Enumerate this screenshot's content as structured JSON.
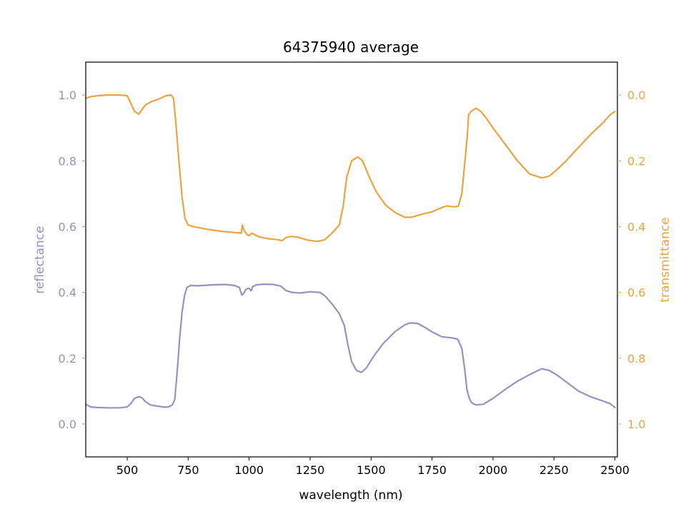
{
  "chart_data": {
    "type": "line",
    "title": "64375940 average",
    "xlabel": "wavelength (nm)",
    "ylabel_left": "reflectance",
    "ylabel_right": "transmittance",
    "xlim": [
      330,
      2510
    ],
    "ylim_left": [
      -0.1,
      1.1
    ],
    "ylim_right": [
      1.1,
      -0.1
    ],
    "right_axis_inverted": true,
    "grid": false,
    "x_ticks": [
      {
        "value": 500,
        "label": "500"
      },
      {
        "value": 750,
        "label": "750"
      },
      {
        "value": 1000,
        "label": "1000"
      },
      {
        "value": 1250,
        "label": "1250"
      },
      {
        "value": 1500,
        "label": "1500"
      },
      {
        "value": 1750,
        "label": "1750"
      },
      {
        "value": 2000,
        "label": "2000"
      },
      {
        "value": 2250,
        "label": "2250"
      },
      {
        "value": 2500,
        "label": "2500"
      }
    ],
    "y_ticks_left": [
      {
        "value": 0.0,
        "label": "0.0"
      },
      {
        "value": 0.2,
        "label": "0.2"
      },
      {
        "value": 0.4,
        "label": "0.4"
      },
      {
        "value": 0.6,
        "label": "0.6"
      },
      {
        "value": 0.8,
        "label": "0.8"
      },
      {
        "value": 1.0,
        "label": "1.0"
      }
    ],
    "y_ticks_right": [
      {
        "value": 0.0,
        "label": "0.0"
      },
      {
        "value": 0.2,
        "label": "0.2"
      },
      {
        "value": 0.4,
        "label": "0.4"
      },
      {
        "value": 0.6,
        "label": "0.6"
      },
      {
        "value": 0.8,
        "label": "0.8"
      },
      {
        "value": 1.0,
        "label": "1.0"
      }
    ],
    "colors": {
      "reflectance": "#9791c3",
      "transmittance": "#eca340",
      "axes": "#000000"
    },
    "series": [
      {
        "axis": "left",
        "color": "#9791c3",
        "points": [
          [
            330,
            0.06
          ],
          [
            350,
            0.052
          ],
          [
            380,
            0.05
          ],
          [
            420,
            0.049
          ],
          [
            470,
            0.049
          ],
          [
            500,
            0.052
          ],
          [
            515,
            0.062
          ],
          [
            530,
            0.078
          ],
          [
            548,
            0.083
          ],
          [
            560,
            0.08
          ],
          [
            575,
            0.068
          ],
          [
            595,
            0.058
          ],
          [
            625,
            0.054
          ],
          [
            655,
            0.051
          ],
          [
            670,
            0.052
          ],
          [
            685,
            0.058
          ],
          [
            695,
            0.075
          ],
          [
            705,
            0.16
          ],
          [
            715,
            0.26
          ],
          [
            725,
            0.34
          ],
          [
            735,
            0.39
          ],
          [
            745,
            0.415
          ],
          [
            760,
            0.421
          ],
          [
            790,
            0.42
          ],
          [
            850,
            0.423
          ],
          [
            900,
            0.424
          ],
          [
            940,
            0.421
          ],
          [
            960,
            0.415
          ],
          [
            970,
            0.392
          ],
          [
            978,
            0.398
          ],
          [
            986,
            0.408
          ],
          [
            993,
            0.412
          ],
          [
            1000,
            0.412
          ],
          [
            1008,
            0.405
          ],
          [
            1015,
            0.418
          ],
          [
            1030,
            0.423
          ],
          [
            1060,
            0.425
          ],
          [
            1100,
            0.424
          ],
          [
            1130,
            0.419
          ],
          [
            1150,
            0.406
          ],
          [
            1175,
            0.4
          ],
          [
            1210,
            0.398
          ],
          [
            1250,
            0.402
          ],
          [
            1290,
            0.4
          ],
          [
            1310,
            0.39
          ],
          [
            1340,
            0.365
          ],
          [
            1370,
            0.335
          ],
          [
            1390,
            0.3
          ],
          [
            1405,
            0.24
          ],
          [
            1420,
            0.19
          ],
          [
            1440,
            0.163
          ],
          [
            1460,
            0.157
          ],
          [
            1480,
            0.17
          ],
          [
            1510,
            0.205
          ],
          [
            1550,
            0.245
          ],
          [
            1600,
            0.282
          ],
          [
            1640,
            0.302
          ],
          [
            1660,
            0.307
          ],
          [
            1690,
            0.306
          ],
          [
            1720,
            0.294
          ],
          [
            1750,
            0.28
          ],
          [
            1790,
            0.265
          ],
          [
            1830,
            0.262
          ],
          [
            1855,
            0.258
          ],
          [
            1872,
            0.23
          ],
          [
            1885,
            0.16
          ],
          [
            1893,
            0.105
          ],
          [
            1900,
            0.085
          ],
          [
            1908,
            0.07
          ],
          [
            1915,
            0.063
          ],
          [
            1930,
            0.058
          ],
          [
            1960,
            0.06
          ],
          [
            2000,
            0.078
          ],
          [
            2050,
            0.105
          ],
          [
            2100,
            0.13
          ],
          [
            2150,
            0.15
          ],
          [
            2200,
            0.168
          ],
          [
            2230,
            0.163
          ],
          [
            2260,
            0.15
          ],
          [
            2300,
            0.128
          ],
          [
            2350,
            0.1
          ],
          [
            2400,
            0.083
          ],
          [
            2450,
            0.07
          ],
          [
            2480,
            0.062
          ],
          [
            2500,
            0.05
          ]
        ]
      },
      {
        "axis": "right",
        "color": "#eca340",
        "points": [
          [
            330,
            0.01
          ],
          [
            350,
            0.005
          ],
          [
            380,
            0.002
          ],
          [
            420,
            0.0
          ],
          [
            470,
            0.0
          ],
          [
            500,
            0.002
          ],
          [
            515,
            0.025
          ],
          [
            530,
            0.05
          ],
          [
            548,
            0.058
          ],
          [
            560,
            0.045
          ],
          [
            575,
            0.03
          ],
          [
            600,
            0.02
          ],
          [
            630,
            0.012
          ],
          [
            660,
            0.002
          ],
          [
            680,
            0.0
          ],
          [
            690,
            0.01
          ],
          [
            700,
            0.09
          ],
          [
            712,
            0.2
          ],
          [
            725,
            0.31
          ],
          [
            737,
            0.375
          ],
          [
            750,
            0.395
          ],
          [
            770,
            0.4
          ],
          [
            820,
            0.407
          ],
          [
            880,
            0.414
          ],
          [
            940,
            0.418
          ],
          [
            968,
            0.42
          ],
          [
            972,
            0.395
          ],
          [
            978,
            0.41
          ],
          [
            985,
            0.418
          ],
          [
            992,
            0.425
          ],
          [
            1000,
            0.428
          ],
          [
            1010,
            0.42
          ],
          [
            1040,
            0.431
          ],
          [
            1080,
            0.437
          ],
          [
            1120,
            0.44
          ],
          [
            1135,
            0.443
          ],
          [
            1150,
            0.434
          ],
          [
            1170,
            0.43
          ],
          [
            1200,
            0.432
          ],
          [
            1240,
            0.441
          ],
          [
            1280,
            0.445
          ],
          [
            1310,
            0.44
          ],
          [
            1340,
            0.42
          ],
          [
            1370,
            0.395
          ],
          [
            1385,
            0.34
          ],
          [
            1400,
            0.25
          ],
          [
            1420,
            0.2
          ],
          [
            1445,
            0.188
          ],
          [
            1465,
            0.2
          ],
          [
            1490,
            0.245
          ],
          [
            1520,
            0.293
          ],
          [
            1560,
            0.335
          ],
          [
            1600,
            0.358
          ],
          [
            1640,
            0.372
          ],
          [
            1670,
            0.371
          ],
          [
            1700,
            0.364
          ],
          [
            1750,
            0.355
          ],
          [
            1780,
            0.345
          ],
          [
            1810,
            0.337
          ],
          [
            1840,
            0.34
          ],
          [
            1858,
            0.338
          ],
          [
            1872,
            0.3
          ],
          [
            1885,
            0.2
          ],
          [
            1895,
            0.12
          ],
          [
            1900,
            0.06
          ],
          [
            1910,
            0.05
          ],
          [
            1930,
            0.04
          ],
          [
            1950,
            0.05
          ],
          [
            1970,
            0.068
          ],
          [
            2000,
            0.1
          ],
          [
            2050,
            0.15
          ],
          [
            2100,
            0.2
          ],
          [
            2150,
            0.24
          ],
          [
            2200,
            0.252
          ],
          [
            2230,
            0.247
          ],
          [
            2260,
            0.228
          ],
          [
            2300,
            0.2
          ],
          [
            2350,
            0.16
          ],
          [
            2400,
            0.12
          ],
          [
            2450,
            0.085
          ],
          [
            2480,
            0.06
          ],
          [
            2500,
            0.05
          ]
        ]
      }
    ]
  }
}
